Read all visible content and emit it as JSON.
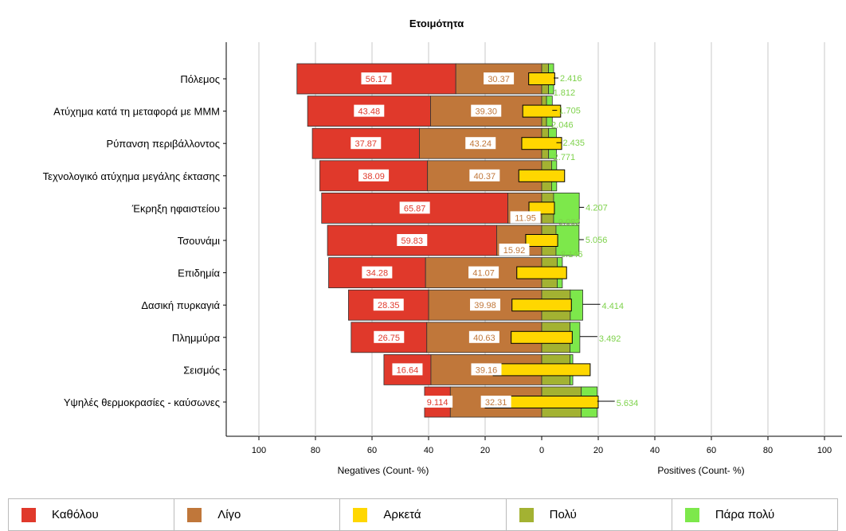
{
  "chart_data": {
    "type": "bar",
    "title": "Ετοιμότητα",
    "categories": [
      "Πόλεμος",
      "Ατύχημα κατά τη μεταφορά με ΜΜΜ",
      "Ρύπανση περιβάλλοντος",
      "Τεχνολογικό ατύχημα μεγάλης έκτασης",
      "Έκρηξη ηφαιστείου",
      "Τσουνάμι",
      "Επιδημία",
      "Δασική πυρκαγιά",
      "Πλημμύρα",
      "Σεισμός",
      "Υψηλές θερμοκρασίες - καύσωνες"
    ],
    "series": [
      {
        "name": "Καθόλου",
        "color": "#e0392b",
        "side": "negative",
        "values": [
          56.17,
          43.48,
          37.87,
          38.09,
          65.87,
          59.83,
          34.28,
          28.35,
          26.75,
          16.64,
          9.114
        ],
        "labels": [
          "56.17",
          "43.48",
          "37.87",
          "38.09",
          "65.87",
          "59.83",
          "34.28",
          "28.35",
          "26.75",
          "16.64",
          "9.114"
        ]
      },
      {
        "name": "Λίγο",
        "color": "#c0773a",
        "side": "negative",
        "values": [
          30.37,
          39.3,
          43.24,
          40.37,
          11.95,
          15.92,
          41.07,
          39.98,
          40.63,
          39.16,
          32.31
        ],
        "labels": [
          "30.37",
          "39.30",
          "43.24",
          "40.37",
          "11.95",
          "15.92",
          "41.07",
          "39.98",
          "40.63",
          "39.16",
          "32.31"
        ]
      },
      {
        "name": "Αρκετά",
        "color": "#ffd700",
        "side": "split",
        "values": [
          9.2,
          13.4,
          14.1,
          16.2,
          9.0,
          11.3,
          17.6,
          21.0,
          21.6,
          34.3,
          40.0
        ],
        "labels": [
          "",
          "",
          "",
          "",
          "",
          "",
          "",
          "",
          "",
          "",
          ""
        ]
      },
      {
        "name": "Πολύ",
        "color": "#a3b232",
        "side": "positive",
        "values": [
          2.416,
          1.705,
          2.435,
          3.5,
          4.207,
          5.056,
          5.5,
          10.1,
          10.0,
          10.0,
          14.0
        ],
        "labels": [
          "2.416",
          "1.705",
          "2.435",
          "",
          "4.207",
          "5.056",
          "",
          "",
          "",
          "",
          ""
        ]
      },
      {
        "name": "Πάρα πολύ",
        "color": "#7de84b",
        "side": "positive",
        "values": [
          1.812,
          2.046,
          2.771,
          1.8,
          9.082,
          8.146,
          1.8,
          4.414,
          3.492,
          1.0,
          5.634
        ],
        "labels": [
          "1.812",
          "2.046",
          "2.771",
          "",
          "9.082",
          "8.146",
          "",
          "4.414",
          "3.492",
          "",
          "5.634"
        ]
      }
    ],
    "x_ticks": [
      "100",
      "80",
      "60",
      "40",
      "20",
      "0",
      "20",
      "40",
      "60",
      "80",
      "100"
    ],
    "xlabel_negative": "Negatives (Count- %)",
    "xlabel_positive": "Positives (Count- %)",
    "xlim": [
      -100,
      100
    ],
    "grid": true,
    "legend_position": "bottom"
  }
}
